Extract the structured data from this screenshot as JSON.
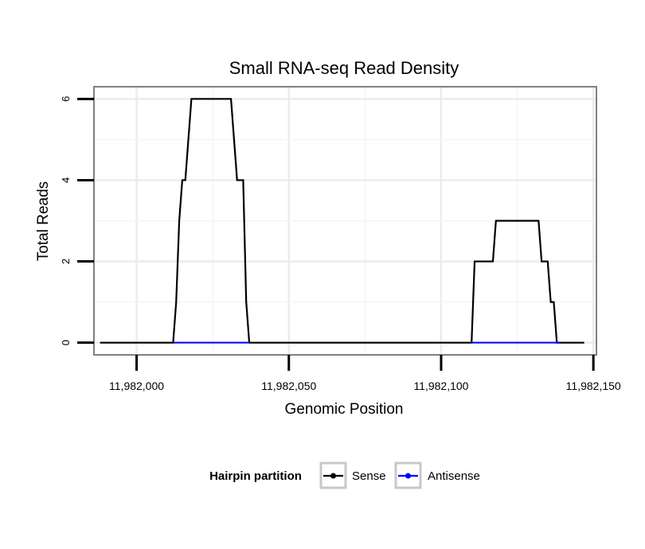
{
  "chart_data": {
    "type": "line",
    "title": "Small RNA-seq Read Density",
    "xlabel": "Genomic Position",
    "ylabel": "Total Reads",
    "xlim": [
      11981986,
      11982151
    ],
    "ylim": [
      -0.3,
      6.3
    ],
    "x_ticks": [
      11982000,
      11982050,
      11982100,
      11982150
    ],
    "x_tick_labels": [
      "11,982,000",
      "11,982,050",
      "11,982,100",
      "11,982,150"
    ],
    "y_ticks": [
      0,
      2,
      4,
      6
    ],
    "y_tick_labels": [
      "0",
      "2",
      "4",
      "6"
    ],
    "grid": true,
    "series": [
      {
        "name": "Sense",
        "color": "#000000",
        "x": [
          11981988,
          11982012,
          11982013,
          11982014,
          11982015,
          11982016,
          11982018,
          11982031,
          11982032,
          11982033,
          11982035,
          11982036,
          11982037,
          11982110,
          11982111,
          11982117,
          11982118,
          11982132,
          11982133,
          11982135,
          11982136,
          11982137,
          11982138,
          11982139,
          11982147
        ],
        "y": [
          0,
          0,
          1,
          3,
          4,
          4,
          6,
          6,
          5,
          4,
          4,
          1,
          0,
          0,
          2,
          2,
          3,
          3,
          2,
          2,
          1,
          1,
          0,
          0,
          0
        ]
      },
      {
        "name": "Antisense",
        "color": "#0000ff",
        "x": [
          11982012,
          11982037,
          11982110,
          11982139
        ],
        "y": [
          0,
          0,
          0,
          0
        ],
        "segments": [
          [
            0,
            1
          ],
          [
            2,
            3
          ]
        ]
      }
    ],
    "legend": {
      "title": "Hairpin partition",
      "position": "bottom",
      "entries": [
        "Sense",
        "Antisense"
      ]
    }
  }
}
